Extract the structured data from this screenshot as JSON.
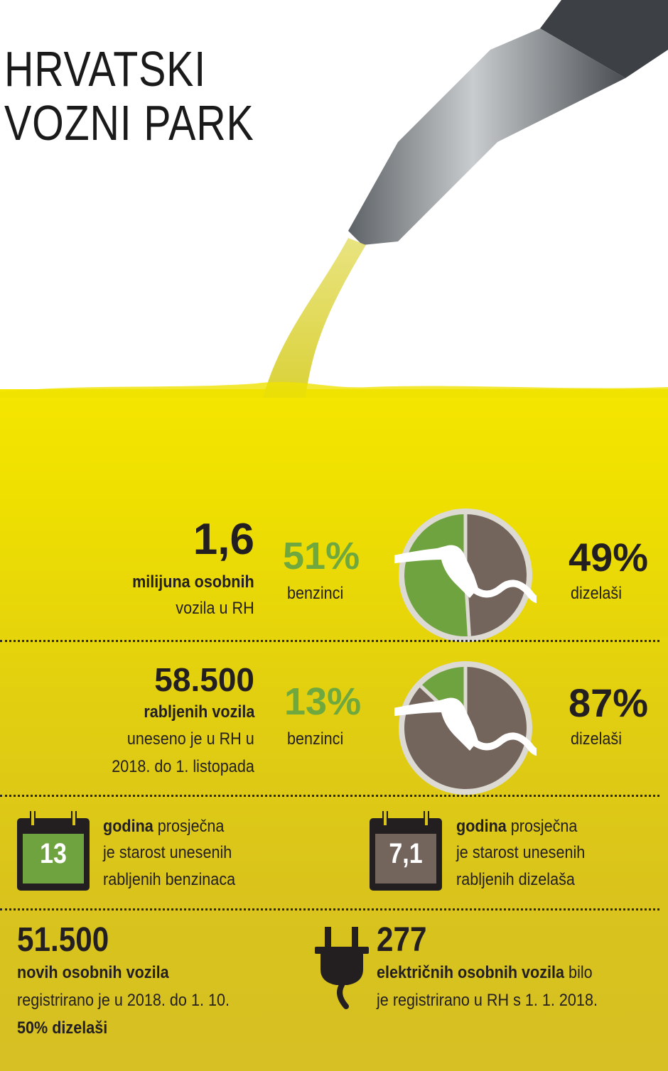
{
  "title": {
    "line1": "HRVATSKI",
    "line2": "VOZNI PARK"
  },
  "colors": {
    "petrol": "#6fa33f",
    "diesel": "#73645c",
    "ring": "#dcdad2",
    "text": "#231f20",
    "petrol_label": "#6fa83e"
  },
  "section1": {
    "value": "1,6",
    "label_bold": "milijuna osobnih",
    "label": "vozila u RH",
    "petrol_pct": "51%",
    "petrol_label": "benzinci",
    "diesel_pct": "49%",
    "diesel_label": "dizelaši",
    "icon": "fuel-nozzle-icon"
  },
  "section2": {
    "value": "58.500",
    "label_bold": "rabljenih vozila",
    "line1": "uneseno je u RH u",
    "line2": "2018. do 1. listopada",
    "petrol_pct": "13%",
    "petrol_label": "benzinci",
    "diesel_pct": "87%",
    "diesel_label": "dizelaši",
    "icon": "fuel-nozzle-icon"
  },
  "section3": {
    "petrol": {
      "value": "13",
      "bold": "godina",
      "rest": " prosječna",
      "line2": "je starost unesenih",
      "line3": "rabljenih benzinaca",
      "icon": "calendar-icon"
    },
    "diesel": {
      "value": "7,1",
      "bold": "godina",
      "rest": " prosječna",
      "line2": "je starost unesenih",
      "line3": "rabljenih dizelaša",
      "icon": "calendar-icon"
    }
  },
  "section4": {
    "new": {
      "value": "51.500",
      "bold": "novih osobnih vozila",
      "line2": "registrirano je u 2018. do 1. 10.",
      "line3": "50% dizelaši"
    },
    "electric": {
      "value": "277",
      "bold": "električnih osobnih vozila",
      "rest": " bilo",
      "line2": "je registrirano u RH s 1. 1. 2018.",
      "icon": "plug-icon"
    }
  },
  "chart_data": [
    {
      "type": "pie",
      "categories": [
        "benzinci",
        "dizelaši"
      ],
      "values": [
        51,
        49
      ]
    },
    {
      "type": "pie",
      "categories": [
        "benzinci",
        "dizelaši"
      ],
      "values": [
        13,
        87
      ]
    }
  ]
}
